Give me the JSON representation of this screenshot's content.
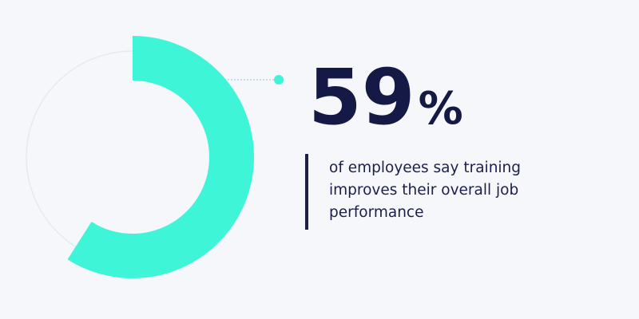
{
  "chart_data": {
    "type": "donut",
    "values": [
      59
    ],
    "value_labels": [
      "59%"
    ],
    "color": "#3ef5d8",
    "caption": [
      "of employees say training",
      "improves their overall job",
      "performance"
    ]
  }
}
